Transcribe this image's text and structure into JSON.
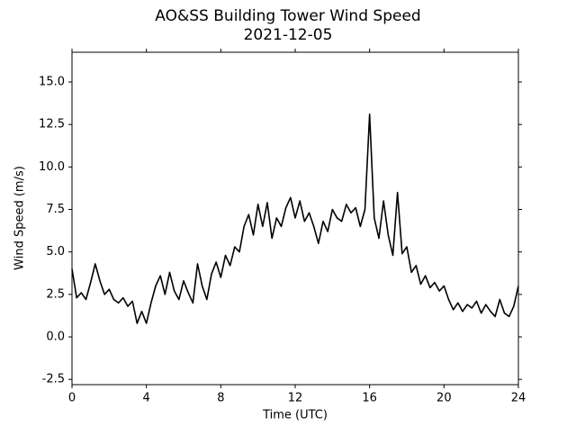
{
  "chart_data": {
    "type": "line",
    "title": "AO&SS Building Tower Wind Speed",
    "subtitle": "2021-12-05",
    "x_label": "Time (UTC)",
    "y_label": "Wind Speed (m/s)",
    "x": [
      0,
      0.25,
      0.5,
      0.75,
      1,
      1.25,
      1.5,
      1.75,
      2,
      2.25,
      2.5,
      2.75,
      3,
      3.25,
      3.5,
      3.75,
      4,
      4.25,
      4.5,
      4.75,
      5,
      5.25,
      5.5,
      5.75,
      6,
      6.25,
      6.5,
      6.75,
      7,
      7.25,
      7.5,
      7.75,
      8,
      8.25,
      8.5,
      8.75,
      9,
      9.25,
      9.5,
      9.75,
      10,
      10.25,
      10.5,
      10.75,
      11,
      11.25,
      11.5,
      11.75,
      12,
      12.25,
      12.5,
      12.75,
      13,
      13.25,
      13.5,
      13.75,
      14,
      14.25,
      14.5,
      14.75,
      15,
      15.25,
      15.5,
      15.75,
      16,
      16.25,
      16.5,
      16.75,
      17,
      17.25,
      17.5,
      17.75,
      18,
      18.25,
      18.5,
      18.75,
      19,
      19.25,
      19.5,
      19.75,
      20,
      20.25,
      20.5,
      20.75,
      21,
      21.25,
      21.5,
      21.75,
      22,
      22.25,
      22.5,
      22.75,
      23,
      23.25,
      23.5,
      23.75,
      24
    ],
    "series": [
      {
        "name": "Wind Speed",
        "color": "#000000",
        "values": [
          4.0,
          2.3,
          2.6,
          2.2,
          3.2,
          4.3,
          3.3,
          2.5,
          2.8,
          2.2,
          2.0,
          2.3,
          1.8,
          2.1,
          0.8,
          1.5,
          0.8,
          2.0,
          3.0,
          3.6,
          2.5,
          3.8,
          2.7,
          2.2,
          3.3,
          2.6,
          2.0,
          4.3,
          3.0,
          2.2,
          3.7,
          4.4,
          3.5,
          4.8,
          4.2,
          5.3,
          5.0,
          6.5,
          7.2,
          6.0,
          7.8,
          6.5,
          7.9,
          5.8,
          7.0,
          6.5,
          7.6,
          8.2,
          7.0,
          8.0,
          6.8,
          7.3,
          6.5,
          5.5,
          6.8,
          6.2,
          7.5,
          7.0,
          6.8,
          7.8,
          7.3,
          7.6,
          6.5,
          7.5,
          13.1,
          7.0,
          5.8,
          8.0,
          6.0,
          4.8,
          8.5,
          4.9,
          5.3,
          3.8,
          4.2,
          3.1,
          3.6,
          2.9,
          3.2,
          2.7,
          3.0,
          2.2,
          1.6,
          2.0,
          1.5,
          1.9,
          1.7,
          2.1,
          1.4,
          1.9,
          1.5,
          1.2,
          2.2,
          1.4,
          1.2,
          1.8,
          3.0
        ]
      }
    ],
    "xlim": [
      0,
      24
    ],
    "xticks": [
      0,
      4,
      8,
      12,
      16,
      20,
      24
    ],
    "ylim": [
      -2.81,
      16.75
    ],
    "yticks": [
      -2.5,
      {
        "value": 0,
        "label": "0.0"
      },
      2.5,
      {
        "value": 5,
        "label": "5.0"
      },
      7.5,
      {
        "value": 10,
        "label": "10.0"
      },
      12.5,
      {
        "value": 15,
        "label": "15.0"
      }
    ]
  }
}
